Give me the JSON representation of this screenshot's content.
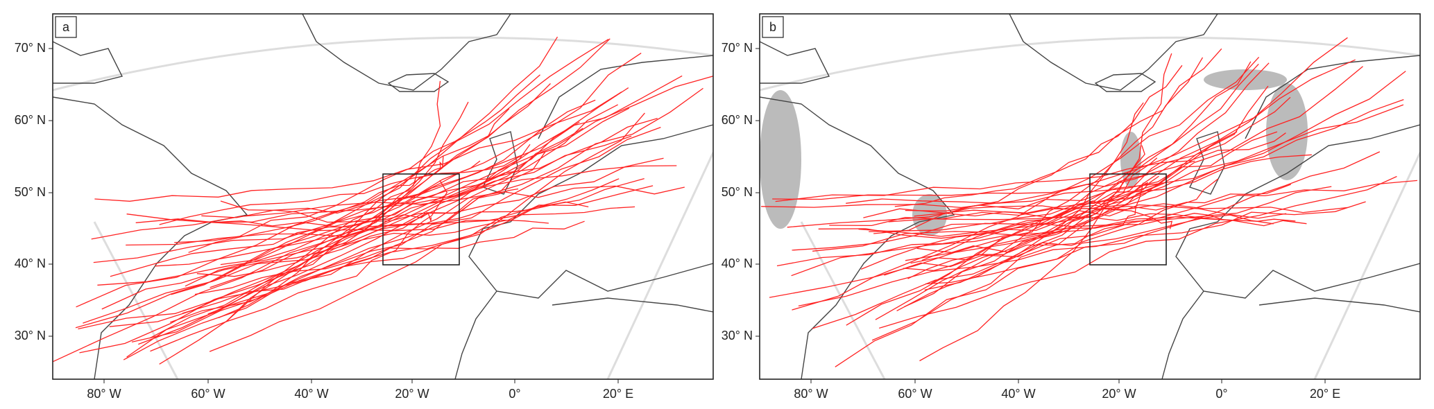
{
  "panels": [
    {
      "label": "a",
      "lat_labels": [
        "70° N",
        "60° N",
        "50° N",
        "40° N",
        "30° N"
      ],
      "lon_labels": [
        "80° W",
        "60° W",
        "40° W",
        "20° W",
        "0°",
        "20° E"
      ]
    },
    {
      "label": "b",
      "lat_labels": [
        "70° N",
        "60° N",
        "50° N",
        "40° N",
        "30° N"
      ],
      "lon_labels": [
        "80° W",
        "60° W",
        "40° W",
        "20° W",
        "0°",
        "20° E"
      ]
    }
  ]
}
